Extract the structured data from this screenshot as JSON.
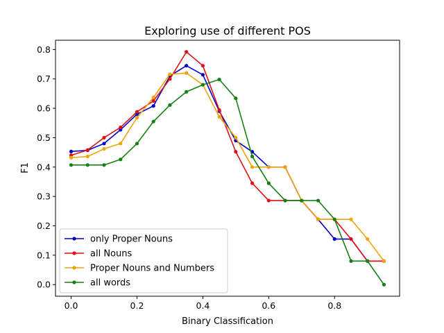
{
  "chart_data": {
    "type": "line",
    "title": "Exploring use of different POS",
    "xlabel": "Binary Classification",
    "ylabel": "F1",
    "xlim": [
      -0.0475,
      0.9975
    ],
    "ylim": [
      -0.0396,
      0.8316
    ],
    "x_ticks": [
      0.0,
      0.2,
      0.4,
      0.6,
      0.8
    ],
    "x_tick_labels": [
      "0.0",
      "0.2",
      "0.4",
      "0.6",
      "0.8"
    ],
    "y_ticks": [
      0.0,
      0.1,
      0.2,
      0.3,
      0.4,
      0.5,
      0.6,
      0.7,
      0.8
    ],
    "y_tick_labels": [
      "0.0",
      "0.1",
      "0.2",
      "0.3",
      "0.4",
      "0.5",
      "0.6",
      "0.7",
      "0.8"
    ],
    "grid": false,
    "legend_position": "lower-left",
    "x": [
      0.0,
      0.05,
      0.1,
      0.15,
      0.2,
      0.25,
      0.3,
      0.35,
      0.4,
      0.45,
      0.5,
      0.55,
      0.6,
      0.65,
      0.7,
      0.75,
      0.8,
      0.85,
      0.9,
      0.95
    ],
    "series": [
      {
        "name": "only Proper Nouns",
        "color": "#0000cc",
        "values": [
          0.453,
          0.457,
          0.48,
          0.527,
          0.58,
          0.608,
          0.71,
          0.745,
          0.714,
          0.59,
          0.49,
          0.452,
          0.4,
          0.4,
          0.286,
          0.222,
          0.155,
          0.155,
          0.08,
          0.08
        ]
      },
      {
        "name": "all Nouns",
        "color": "#dd1111",
        "values": [
          0.44,
          0.458,
          0.5,
          0.535,
          0.588,
          0.625,
          0.7,
          0.792,
          0.745,
          0.594,
          0.452,
          0.345,
          0.286,
          0.286,
          0.286,
          0.222,
          0.222,
          0.155,
          0.08,
          0.08
        ]
      },
      {
        "name": "Proper Nouns and Numbers",
        "color": "#f0a30a",
        "values": [
          0.432,
          0.436,
          0.462,
          0.48,
          0.568,
          0.637,
          0.716,
          0.72,
          0.68,
          0.571,
          0.5,
          0.4,
          0.4,
          0.4,
          0.286,
          0.222,
          0.222,
          0.222,
          0.155,
          0.08
        ]
      },
      {
        "name": "all words",
        "color": "#138013",
        "values": [
          0.407,
          0.407,
          0.407,
          0.426,
          0.48,
          0.555,
          0.611,
          0.656,
          0.68,
          0.698,
          0.634,
          0.436,
          0.345,
          0.286,
          0.286,
          0.286,
          0.222,
          0.08,
          0.08,
          0.0
        ]
      }
    ]
  }
}
